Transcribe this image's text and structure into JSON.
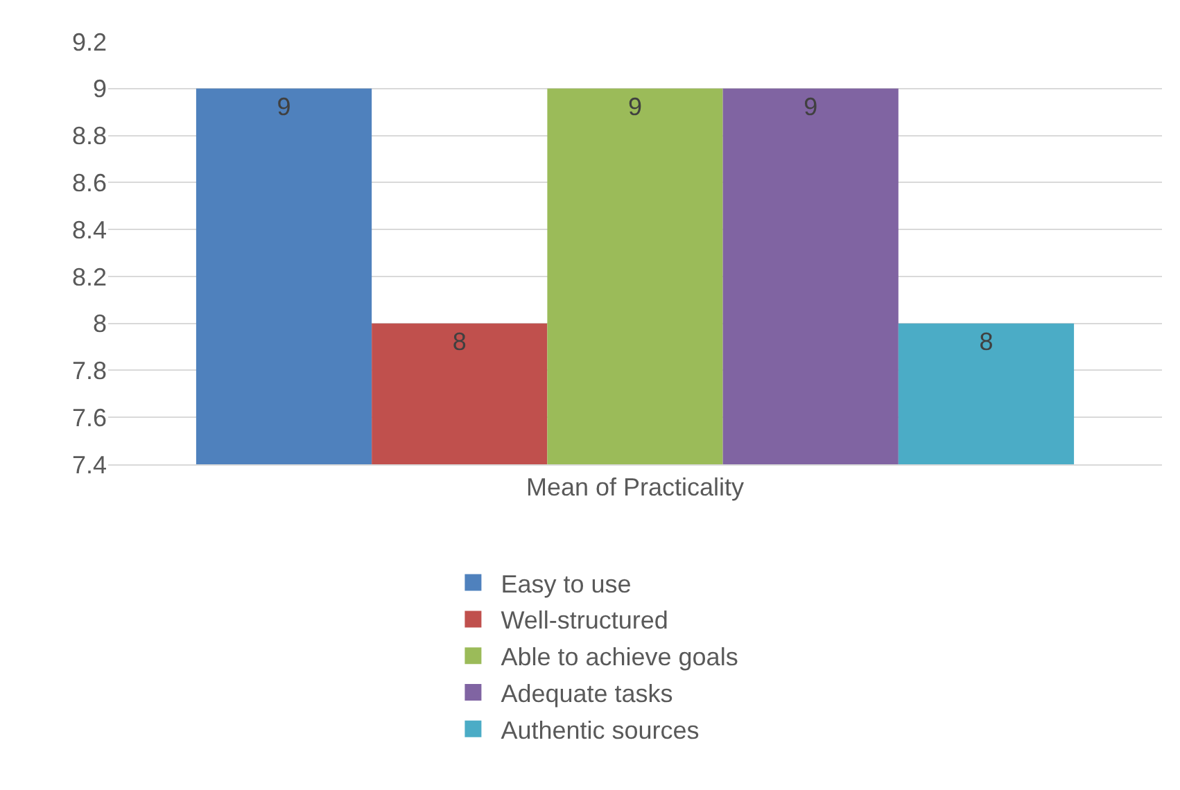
{
  "chart_data": {
    "type": "bar",
    "categories": [
      "Mean of Practicality"
    ],
    "series": [
      {
        "name": "Easy to use",
        "color": "#4f81bd",
        "values": [
          9
        ]
      },
      {
        "name": "Well-structured",
        "color": "#c0504d",
        "values": [
          8
        ]
      },
      {
        "name": "Able to achieve goals",
        "color": "#9bbb59",
        "values": [
          9
        ]
      },
      {
        "name": "Adequate tasks",
        "color": "#8064a2",
        "values": [
          9
        ]
      },
      {
        "name": "Authentic sources",
        "color": "#4bacc6",
        "values": [
          8
        ]
      }
    ],
    "ylim": [
      7.4,
      9.2
    ],
    "yticks": [
      7.4,
      7.6,
      7.8,
      8,
      8.2,
      8.4,
      8.6,
      8.8,
      9,
      9.2
    ],
    "grid": "y",
    "legend": "bottom",
    "data_labels": true
  }
}
